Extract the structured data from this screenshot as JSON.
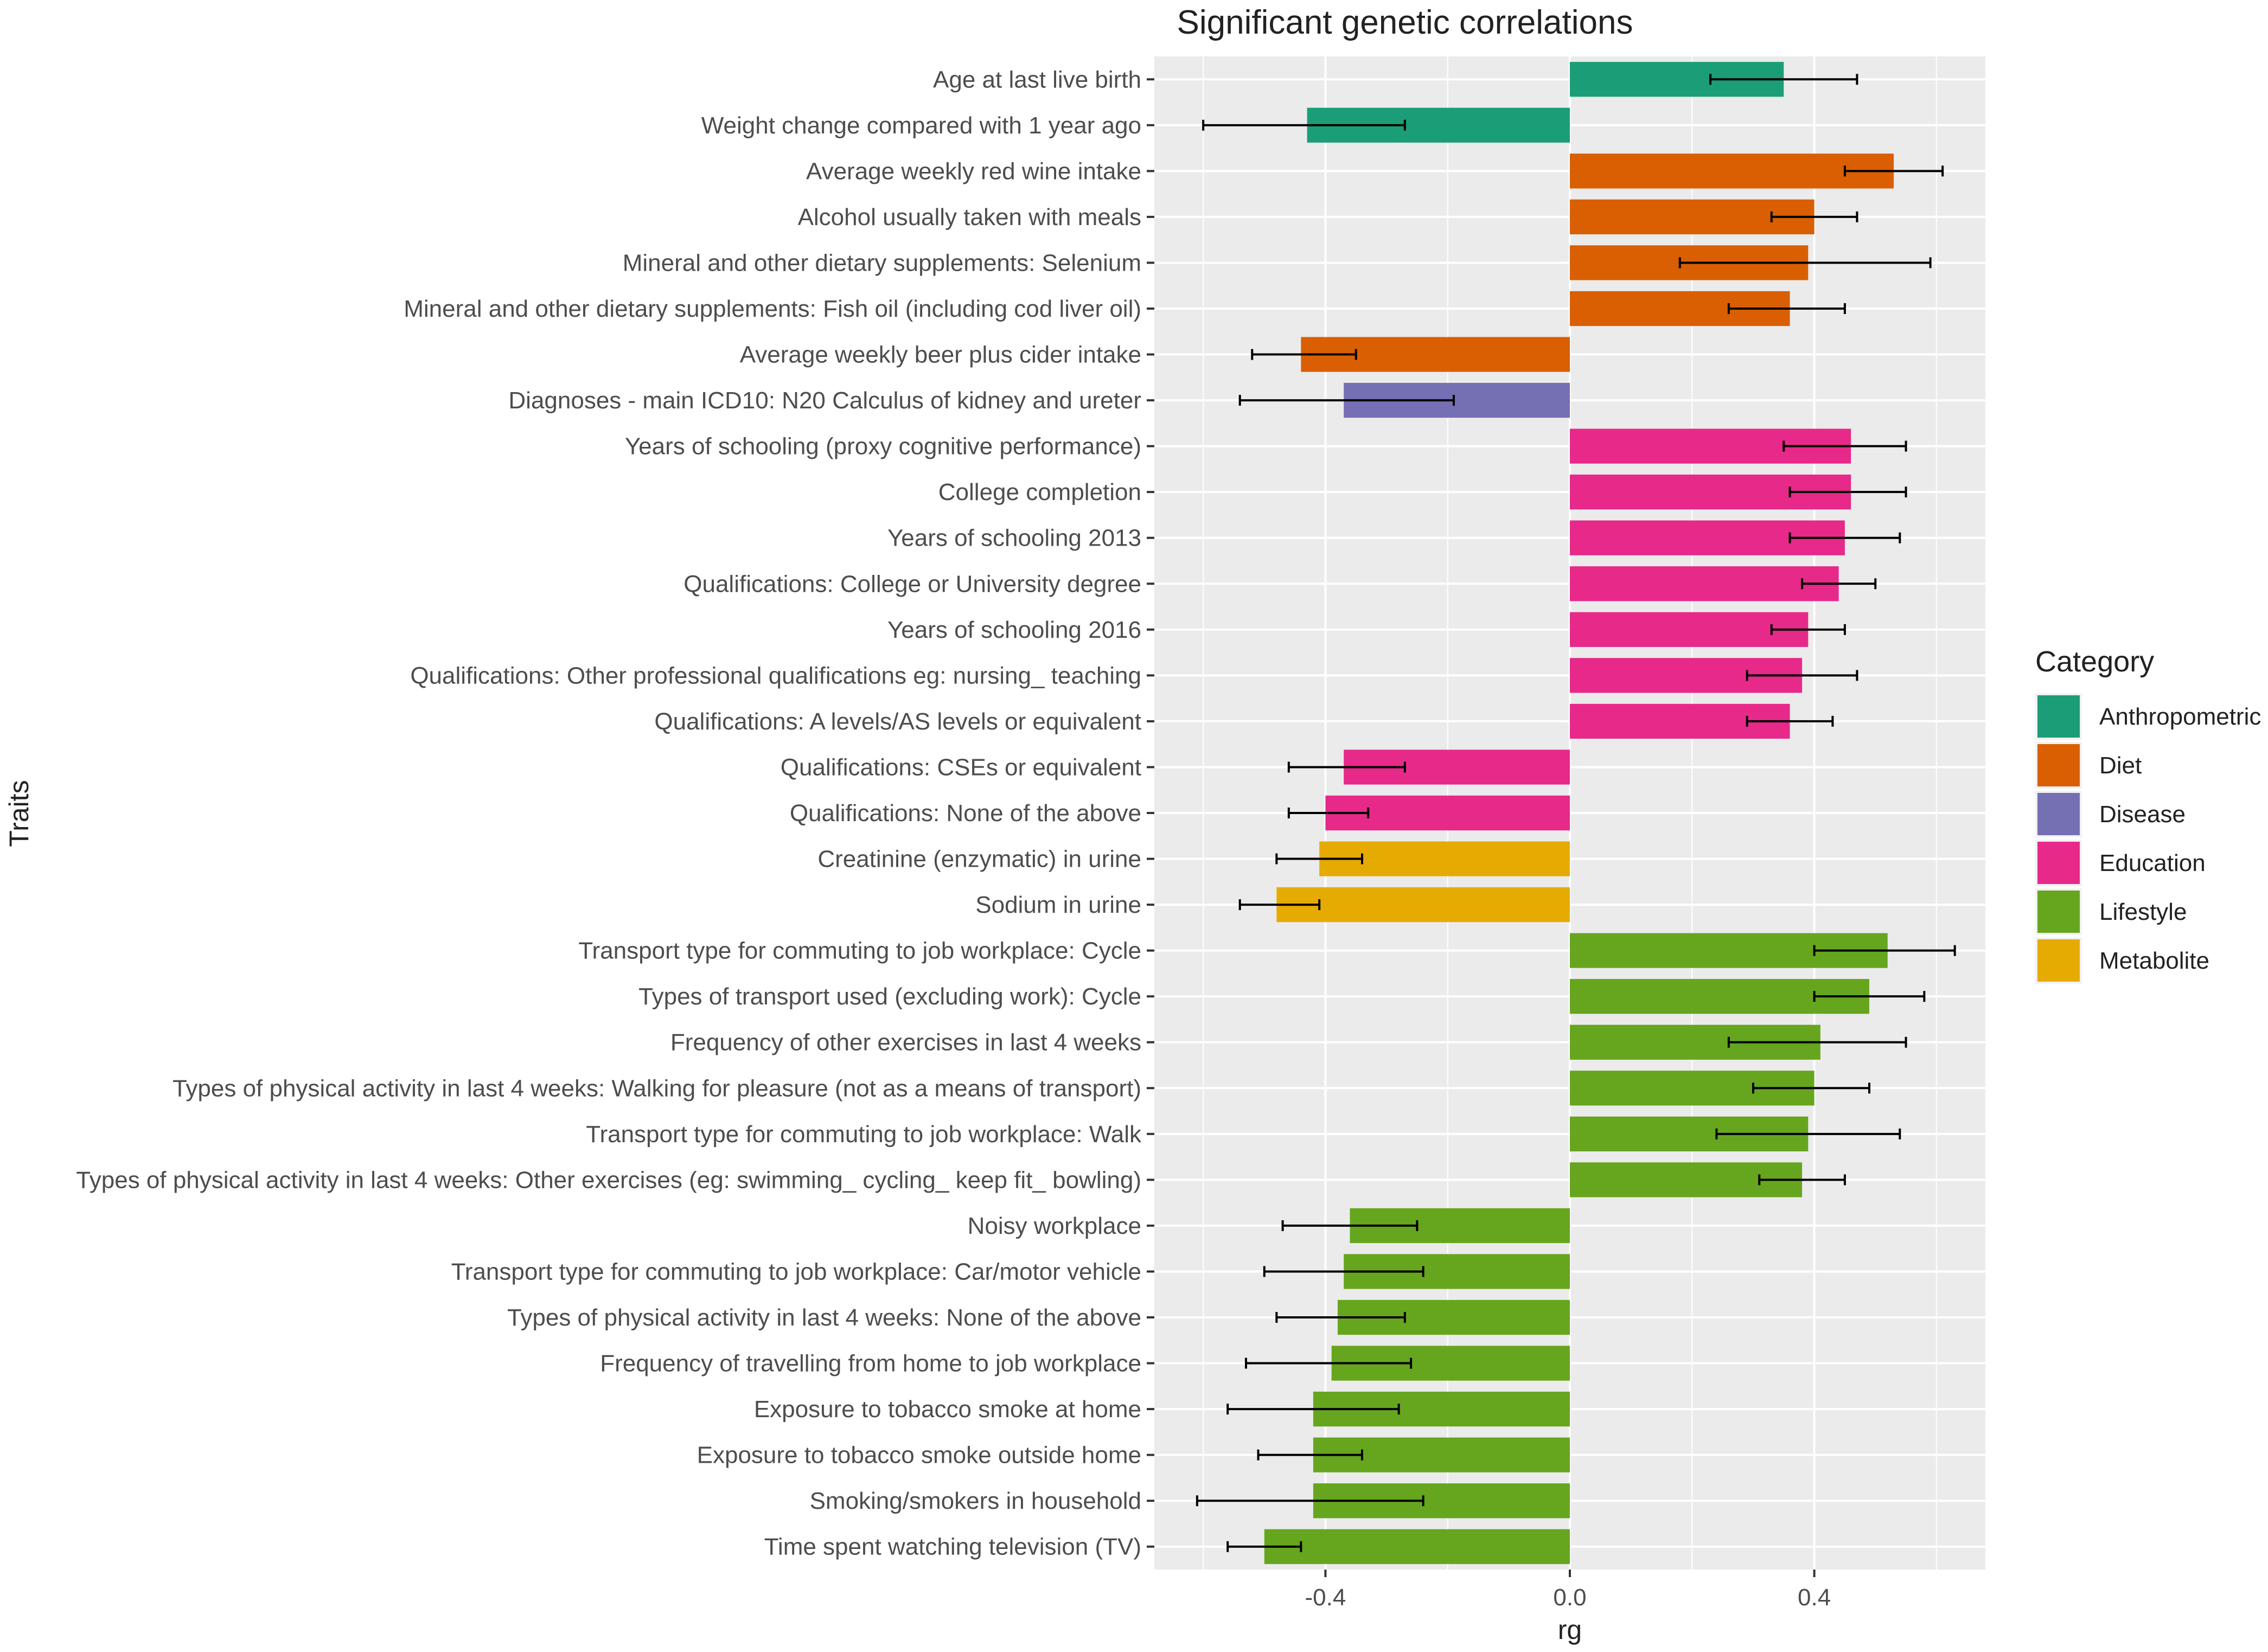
{
  "chart_data": {
    "type": "bar",
    "orientation": "horizontal",
    "title": "Significant genetic correlations",
    "xlabel": "rg",
    "ylabel": "Traits",
    "xlim": [
      -0.68,
      0.68
    ],
    "xticks": [
      -0.4,
      0.0,
      0.4
    ],
    "xtick_labels": [
      "-0.4",
      "0.0",
      "0.4"
    ],
    "grid": true,
    "legend_title": "Category",
    "legend_position": "right",
    "categories_legend": [
      {
        "name": "Anthropometric",
        "color": "#1b9e77"
      },
      {
        "name": "Diet",
        "color": "#d95f02"
      },
      {
        "name": "Disease",
        "color": "#7570b3"
      },
      {
        "name": "Education",
        "color": "#e7298a"
      },
      {
        "name": "Lifestyle",
        "color": "#66a61e"
      },
      {
        "name": "Metabolite",
        "color": "#e6ab02"
      }
    ],
    "traits": [
      {
        "label": "Age at last live birth",
        "rg": 0.35,
        "lo": 0.23,
        "hi": 0.47,
        "category": "Anthropometric"
      },
      {
        "label": "Weight change compared with 1 year ago",
        "rg": -0.43,
        "lo": -0.6,
        "hi": -0.27,
        "category": "Anthropometric"
      },
      {
        "label": "Average weekly red wine intake",
        "rg": 0.53,
        "lo": 0.45,
        "hi": 0.61,
        "category": "Diet"
      },
      {
        "label": "Alcohol usually taken with meals",
        "rg": 0.4,
        "lo": 0.33,
        "hi": 0.47,
        "category": "Diet"
      },
      {
        "label": "Mineral and other dietary supplements: Selenium",
        "rg": 0.39,
        "lo": 0.18,
        "hi": 0.59,
        "category": "Diet"
      },
      {
        "label": "Mineral and other dietary supplements: Fish oil (including cod liver oil)",
        "rg": 0.36,
        "lo": 0.26,
        "hi": 0.45,
        "category": "Diet"
      },
      {
        "label": "Average weekly beer plus cider intake",
        "rg": -0.44,
        "lo": -0.52,
        "hi": -0.35,
        "category": "Diet"
      },
      {
        "label": "Diagnoses - main ICD10: N20 Calculus of kidney and ureter",
        "rg": -0.37,
        "lo": -0.54,
        "hi": -0.19,
        "category": "Disease"
      },
      {
        "label": "Years of schooling (proxy cognitive performance)",
        "rg": 0.46,
        "lo": 0.35,
        "hi": 0.55,
        "category": "Education"
      },
      {
        "label": "College completion",
        "rg": 0.46,
        "lo": 0.36,
        "hi": 0.55,
        "category": "Education"
      },
      {
        "label": "Years of schooling 2013",
        "rg": 0.45,
        "lo": 0.36,
        "hi": 0.54,
        "category": "Education"
      },
      {
        "label": "Qualifications: College or University degree",
        "rg": 0.44,
        "lo": 0.38,
        "hi": 0.5,
        "category": "Education"
      },
      {
        "label": "Years of schooling 2016",
        "rg": 0.39,
        "lo": 0.33,
        "hi": 0.45,
        "category": "Education"
      },
      {
        "label": "Qualifications: Other professional qualifications eg: nursing_ teaching",
        "rg": 0.38,
        "lo": 0.29,
        "hi": 0.47,
        "category": "Education"
      },
      {
        "label": "Qualifications: A levels/AS levels or equivalent",
        "rg": 0.36,
        "lo": 0.29,
        "hi": 0.43,
        "category": "Education"
      },
      {
        "label": "Qualifications: CSEs or equivalent",
        "rg": -0.37,
        "lo": -0.46,
        "hi": -0.27,
        "category": "Education"
      },
      {
        "label": "Qualifications: None of the above",
        "rg": -0.4,
        "lo": -0.46,
        "hi": -0.33,
        "category": "Education"
      },
      {
        "label": "Creatinine (enzymatic) in urine",
        "rg": -0.41,
        "lo": -0.48,
        "hi": -0.34,
        "category": "Metabolite"
      },
      {
        "label": "Sodium in urine",
        "rg": -0.48,
        "lo": -0.54,
        "hi": -0.41,
        "category": "Metabolite"
      },
      {
        "label": "Transport type for commuting to job workplace: Cycle",
        "rg": 0.52,
        "lo": 0.4,
        "hi": 0.63,
        "category": "Lifestyle"
      },
      {
        "label": "Types of transport used (excluding work): Cycle",
        "rg": 0.49,
        "lo": 0.4,
        "hi": 0.58,
        "category": "Lifestyle"
      },
      {
        "label": "Frequency of other exercises in last 4 weeks",
        "rg": 0.41,
        "lo": 0.26,
        "hi": 0.55,
        "category": "Lifestyle"
      },
      {
        "label": "Types of physical activity in last 4 weeks: Walking for pleasure (not as a means of transport)",
        "rg": 0.4,
        "lo": 0.3,
        "hi": 0.49,
        "category": "Lifestyle"
      },
      {
        "label": "Transport type for commuting to job workplace: Walk",
        "rg": 0.39,
        "lo": 0.24,
        "hi": 0.54,
        "category": "Lifestyle"
      },
      {
        "label": "Types of physical activity in last 4 weeks: Other exercises (eg: swimming_ cycling_ keep fit_ bowling)",
        "rg": 0.38,
        "lo": 0.31,
        "hi": 0.45,
        "category": "Lifestyle"
      },
      {
        "label": "Noisy workplace",
        "rg": -0.36,
        "lo": -0.47,
        "hi": -0.25,
        "category": "Lifestyle"
      },
      {
        "label": "Transport type for commuting to job workplace: Car/motor vehicle",
        "rg": -0.37,
        "lo": -0.5,
        "hi": -0.24,
        "category": "Lifestyle"
      },
      {
        "label": "Types of physical activity in last 4 weeks: None of the above",
        "rg": -0.38,
        "lo": -0.48,
        "hi": -0.27,
        "category": "Lifestyle"
      },
      {
        "label": "Frequency of travelling from home to job workplace",
        "rg": -0.39,
        "lo": -0.53,
        "hi": -0.26,
        "category": "Lifestyle"
      },
      {
        "label": "Exposure to tobacco smoke at home",
        "rg": -0.42,
        "lo": -0.56,
        "hi": -0.28,
        "category": "Lifestyle"
      },
      {
        "label": "Exposure to tobacco smoke outside home",
        "rg": -0.42,
        "lo": -0.51,
        "hi": -0.34,
        "category": "Lifestyle"
      },
      {
        "label": "Smoking/smokers in household",
        "rg": -0.42,
        "lo": -0.61,
        "hi": -0.24,
        "category": "Lifestyle"
      },
      {
        "label": "Time spent watching television (TV)",
        "rg": -0.5,
        "lo": -0.56,
        "hi": -0.44,
        "category": "Lifestyle"
      }
    ]
  }
}
